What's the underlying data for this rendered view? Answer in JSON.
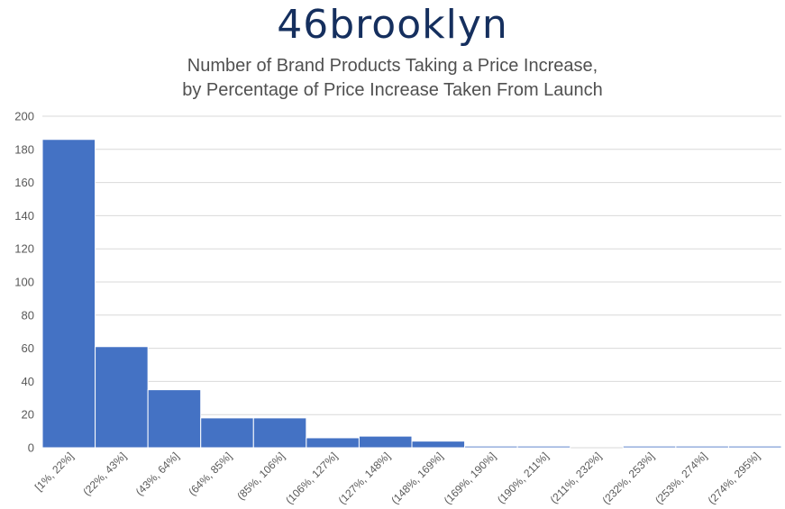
{
  "brand": {
    "logo_text": "46brooklyn"
  },
  "chart_data": {
    "type": "bar",
    "title_lines": [
      "Number of Brand Products Taking a Price Increase,",
      "by Percentage of Price Increase Taken From Launch"
    ],
    "xlabel": "",
    "ylabel": "",
    "categories": [
      "[1%, 22%]",
      "(22%, 43%]",
      "(43%, 64%]",
      "(64%, 85%]",
      "(85%, 106%]",
      "(106%, 127%]",
      "(127%, 148%]",
      "(148%, 169%]",
      "(169%, 190%]",
      "(190%, 211%]",
      "(211%, 232%]",
      "(232%, 253%]",
      "(253%, 274%]",
      "(274%, 295%]"
    ],
    "values": [
      186,
      61,
      35,
      18,
      18,
      6,
      7,
      4,
      1,
      1,
      0,
      1,
      1,
      1
    ],
    "ylim": [
      0,
      200
    ],
    "yticks": [
      0,
      20,
      40,
      60,
      80,
      100,
      120,
      140,
      160,
      180,
      200
    ],
    "grid": true,
    "bar_color": "#4472c4",
    "gridline_color": "#d9d9d9"
  }
}
